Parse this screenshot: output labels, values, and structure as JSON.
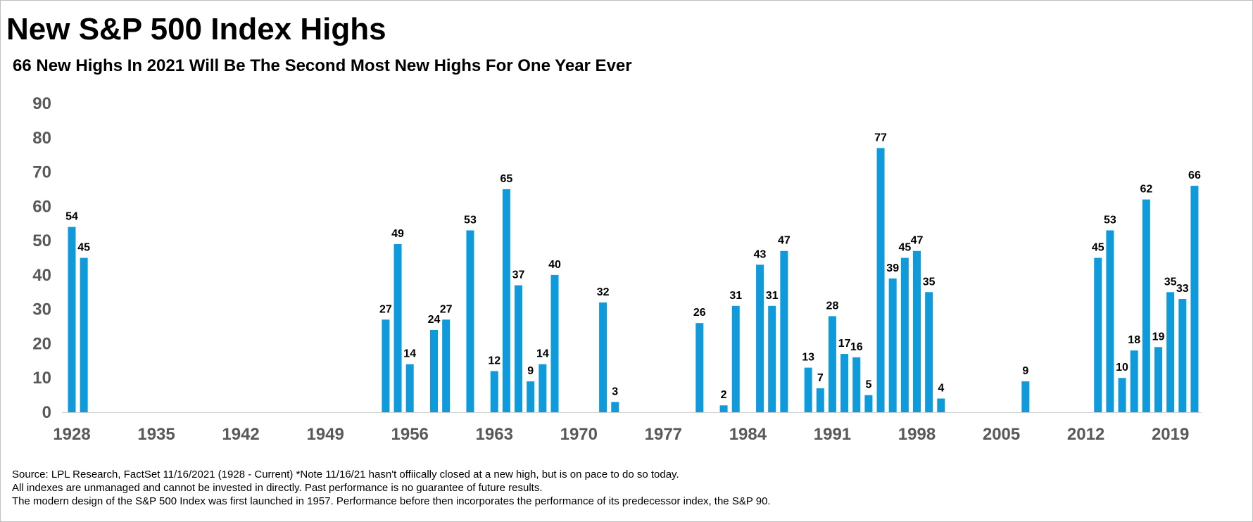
{
  "title": "New S&P 500 Index Highs",
  "subtitle": "66 New Highs In 2021 Will Be The Second Most New Highs For One Year Ever",
  "footnotes": [
    "Source: LPL Research, FactSet 11/16/2021 (1928 - Current) *Note 11/16/21 hasn't offiically closed at a new high, but is on pace to do so today.",
    "All indexes are unmanaged and cannot be invested in directly. Past performance is no guarantee of future results.",
    "The modern design of the S&P 500 Index was first launched in 1957. Performance before then incorporates the performance of its predecessor index, the S&P 90."
  ],
  "chart_data": {
    "type": "bar",
    "bar_color": "#0F9BDB",
    "x_range": [
      1928,
      2021
    ],
    "x_ticks": [
      1928,
      1935,
      1942,
      1949,
      1956,
      1963,
      1970,
      1977,
      1984,
      1991,
      1998,
      2005,
      2012,
      2019
    ],
    "ylim": [
      0,
      90
    ],
    "y_ticks": [
      0,
      10,
      20,
      30,
      40,
      50,
      60,
      70,
      80,
      90
    ],
    "grid": false,
    "data_labels": true,
    "points": [
      {
        "year": 1928,
        "value": 54
      },
      {
        "year": 1929,
        "value": 45
      },
      {
        "year": 1954,
        "value": 27
      },
      {
        "year": 1955,
        "value": 49
      },
      {
        "year": 1956,
        "value": 14
      },
      {
        "year": 1958,
        "value": 24
      },
      {
        "year": 1959,
        "value": 27
      },
      {
        "year": 1961,
        "value": 53
      },
      {
        "year": 1963,
        "value": 12
      },
      {
        "year": 1964,
        "value": 65
      },
      {
        "year": 1965,
        "value": 37
      },
      {
        "year": 1966,
        "value": 9
      },
      {
        "year": 1967,
        "value": 14
      },
      {
        "year": 1968,
        "value": 40
      },
      {
        "year": 1972,
        "value": 32
      },
      {
        "year": 1973,
        "value": 3
      },
      {
        "year": 1980,
        "value": 26
      },
      {
        "year": 1982,
        "value": 2
      },
      {
        "year": 1983,
        "value": 31
      },
      {
        "year": 1985,
        "value": 43
      },
      {
        "year": 1986,
        "value": 31
      },
      {
        "year": 1987,
        "value": 47
      },
      {
        "year": 1989,
        "value": 13
      },
      {
        "year": 1990,
        "value": 7
      },
      {
        "year": 1991,
        "value": 28
      },
      {
        "year": 1992,
        "value": 17
      },
      {
        "year": 1993,
        "value": 16
      },
      {
        "year": 1994,
        "value": 5
      },
      {
        "year": 1995,
        "value": 77
      },
      {
        "year": 1996,
        "value": 39
      },
      {
        "year": 1997,
        "value": 45
      },
      {
        "year": 1998,
        "value": 47
      },
      {
        "year": 1999,
        "value": 35
      },
      {
        "year": 2000,
        "value": 4
      },
      {
        "year": 2007,
        "value": 9
      },
      {
        "year": 2013,
        "value": 45
      },
      {
        "year": 2014,
        "value": 53
      },
      {
        "year": 2015,
        "value": 10
      },
      {
        "year": 2016,
        "value": 18
      },
      {
        "year": 2017,
        "value": 62
      },
      {
        "year": 2018,
        "value": 19
      },
      {
        "year": 2019,
        "value": 35
      },
      {
        "year": 2020,
        "value": 33
      },
      {
        "year": 2021,
        "value": 66
      }
    ]
  }
}
